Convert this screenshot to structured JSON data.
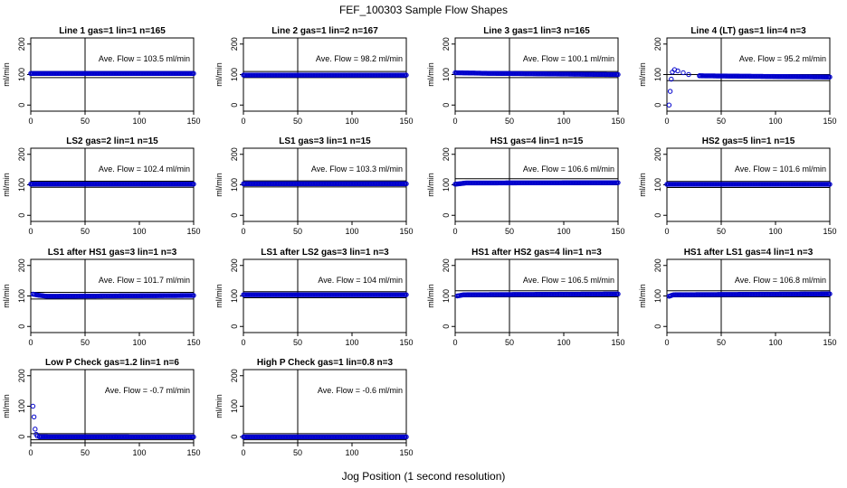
{
  "figure": {
    "title": "FEF_100303  Sample Flow Shapes",
    "xlabel": "Jog Position (1 second resolution)"
  },
  "colors": {
    "points": "#0000cc",
    "axes": "#000000",
    "background": "#ffffff"
  },
  "chart_data": [
    {
      "type": "scatter",
      "title": "Line 1 gas=1 lin=1 n=165",
      "ylabel": "ml/min",
      "annotation": "Ave. Flow =  103.5  ml/min",
      "xlim": [
        0,
        150
      ],
      "ylim": [
        -20,
        220
      ],
      "xticks": [
        0,
        50,
        100,
        150
      ],
      "yticks": [
        0,
        100,
        200
      ],
      "vline_x": 50,
      "hlines_y": [
        90,
        110
      ],
      "x": [
        0,
        150
      ],
      "y": [
        103.5,
        103.5
      ],
      "profile": "flat"
    },
    {
      "type": "scatter",
      "title": "Line 2 gas=1 lin=2 n=167",
      "ylabel": "ml/min",
      "annotation": "Ave. Flow =  98.2  ml/min",
      "xlim": [
        0,
        150
      ],
      "ylim": [
        -20,
        220
      ],
      "xticks": [
        0,
        50,
        100,
        150
      ],
      "yticks": [
        0,
        100,
        200
      ],
      "vline_x": 50,
      "hlines_y": [
        90,
        110
      ],
      "x": [
        0,
        150
      ],
      "y": [
        98.2,
        98.2
      ],
      "profile": "flat"
    },
    {
      "type": "scatter",
      "title": "Line 3 gas=1 lin=3 n=165",
      "ylabel": "ml/min",
      "annotation": "Ave. Flow =  100.1  ml/min",
      "xlim": [
        0,
        150
      ],
      "ylim": [
        -20,
        220
      ],
      "xticks": [
        0,
        50,
        100,
        150
      ],
      "yticks": [
        0,
        100,
        200
      ],
      "vline_x": 50,
      "hlines_y": [
        90,
        110
      ],
      "x": [
        0,
        30,
        150
      ],
      "y": [
        106,
        104,
        100
      ],
      "profile": "flat"
    },
    {
      "type": "scatter",
      "title": "Line 4 (LT) gas=1 lin=4 n=3",
      "ylabel": "ml/min",
      "annotation": "Ave. Flow =  95.2  ml/min",
      "xlim": [
        0,
        150
      ],
      "ylim": [
        -20,
        220
      ],
      "xticks": [
        0,
        50,
        100,
        150
      ],
      "yticks": [
        0,
        100,
        200
      ],
      "vline_x": 50,
      "hlines_y": [
        80,
        100
      ],
      "x": [
        2,
        3,
        4,
        5,
        7,
        10,
        15,
        20,
        30,
        150
      ],
      "y": [
        0,
        45,
        85,
        108,
        116,
        112,
        106,
        100,
        96,
        92
      ],
      "profile": "startup"
    },
    {
      "type": "scatter",
      "title": "LS2 gas=2 lin=1 n=15",
      "ylabel": "ml/min",
      "annotation": "Ave. Flow =  102.4  ml/min",
      "xlim": [
        0,
        150
      ],
      "ylim": [
        -20,
        220
      ],
      "xticks": [
        0,
        50,
        100,
        150
      ],
      "yticks": [
        0,
        100,
        200
      ],
      "vline_x": 50,
      "hlines_y": [
        92,
        112
      ],
      "x": [
        0,
        150
      ],
      "y": [
        102.4,
        102.4
      ],
      "profile": "flat"
    },
    {
      "type": "scatter",
      "title": "LS1 gas=3 lin=1 n=15",
      "ylabel": "ml/min",
      "annotation": "Ave. Flow =  103.3  ml/min",
      "xlim": [
        0,
        150
      ],
      "ylim": [
        -20,
        220
      ],
      "xticks": [
        0,
        50,
        100,
        150
      ],
      "yticks": [
        0,
        100,
        200
      ],
      "vline_x": 50,
      "hlines_y": [
        93,
        113
      ],
      "x": [
        0,
        150
      ],
      "y": [
        103.3,
        103.3
      ],
      "profile": "flat"
    },
    {
      "type": "scatter",
      "title": "HS1 gas=4 lin=1 n=15",
      "ylabel": "ml/min",
      "annotation": "Ave. Flow =  106.6  ml/min",
      "xlim": [
        0,
        150
      ],
      "ylim": [
        -20,
        220
      ],
      "xticks": [
        0,
        50,
        100,
        150
      ],
      "yticks": [
        0,
        100,
        200
      ],
      "vline_x": 50,
      "hlines_y": [
        100,
        120
      ],
      "x": [
        0,
        10,
        150
      ],
      "y": [
        102,
        106,
        107
      ],
      "profile": "flat"
    },
    {
      "type": "scatter",
      "title": "HS2 gas=5 lin=1 n=15",
      "ylabel": "ml/min",
      "annotation": "Ave. Flow =  101.6  ml/min",
      "xlim": [
        0,
        150
      ],
      "ylim": [
        -20,
        220
      ],
      "xticks": [
        0,
        50,
        100,
        150
      ],
      "yticks": [
        0,
        100,
        200
      ],
      "vline_x": 50,
      "hlines_y": [
        91,
        111
      ],
      "x": [
        0,
        150
      ],
      "y": [
        101.6,
        101.6
      ],
      "profile": "flat"
    },
    {
      "type": "scatter",
      "title": "LS1 after HS1 gas=3 lin=1 n=3",
      "ylabel": "ml/min",
      "annotation": "Ave. Flow =  101.7  ml/min",
      "xlim": [
        0,
        150
      ],
      "ylim": [
        -20,
        220
      ],
      "xticks": [
        0,
        50,
        100,
        150
      ],
      "yticks": [
        0,
        100,
        200
      ],
      "vline_x": 50,
      "hlines_y": [
        90,
        112
      ],
      "x": [
        2,
        6,
        15,
        150
      ],
      "y": [
        106,
        103,
        99,
        101.7
      ],
      "profile": "flat"
    },
    {
      "type": "scatter",
      "title": "LS1 after LS2 gas=3 lin=1 n=3",
      "ylabel": "ml/min",
      "annotation": "Ave. Flow =  104  ml/min",
      "xlim": [
        0,
        150
      ],
      "ylim": [
        -20,
        220
      ],
      "xticks": [
        0,
        50,
        100,
        150
      ],
      "yticks": [
        0,
        100,
        200
      ],
      "vline_x": 50,
      "hlines_y": [
        94,
        114
      ],
      "x": [
        0,
        150
      ],
      "y": [
        104,
        104
      ],
      "profile": "flat"
    },
    {
      "type": "scatter",
      "title": "HS1 after HS2 gas=4 lin=1 n=3",
      "ylabel": "ml/min",
      "annotation": "Ave. Flow =  106.5  ml/min",
      "xlim": [
        0,
        150
      ],
      "ylim": [
        -20,
        220
      ],
      "xticks": [
        0,
        50,
        100,
        150
      ],
      "yticks": [
        0,
        100,
        200
      ],
      "vline_x": 50,
      "hlines_y": [
        97,
        117
      ],
      "x": [
        2,
        8,
        150
      ],
      "y": [
        100,
        104,
        106.5
      ],
      "profile": "flat"
    },
    {
      "type": "scatter",
      "title": "HS1 after LS1 gas=4 lin=1 n=3",
      "ylabel": "ml/min",
      "annotation": "Ave. Flow =  106.8  ml/min",
      "xlim": [
        0,
        150
      ],
      "ylim": [
        -20,
        220
      ],
      "xticks": [
        0,
        50,
        100,
        150
      ],
      "yticks": [
        0,
        100,
        200
      ],
      "vline_x": 50,
      "hlines_y": [
        97,
        117
      ],
      "x": [
        2,
        6,
        150
      ],
      "y": [
        99,
        104,
        106.8
      ],
      "profile": "flat"
    },
    {
      "type": "scatter",
      "title": "Low P Check gas=1.2 lin=1 n=6",
      "ylabel": "ml/min",
      "annotation": "Ave. Flow =  -0.7  ml/min",
      "xlim": [
        0,
        150
      ],
      "ylim": [
        -20,
        220
      ],
      "xticks": [
        0,
        50,
        100,
        150
      ],
      "yticks": [
        0,
        100,
        200
      ],
      "vline_x": 50,
      "hlines_y": [
        -10,
        10
      ],
      "x": [
        2,
        3,
        4,
        5,
        6,
        8,
        150
      ],
      "y": [
        100,
        65,
        25,
        8,
        2,
        0,
        -0.7
      ],
      "profile": "decay"
    },
    {
      "type": "scatter",
      "title": "High P Check gas=1 lin=0.8 n=3",
      "ylabel": "ml/min",
      "annotation": "Ave. Flow =  -0.6  ml/min",
      "xlim": [
        0,
        150
      ],
      "ylim": [
        -20,
        220
      ],
      "xticks": [
        0,
        50,
        100,
        150
      ],
      "yticks": [
        0,
        100,
        200
      ],
      "vline_x": 50,
      "hlines_y": [
        -10,
        10
      ],
      "x": [
        0,
        150
      ],
      "y": [
        -0.6,
        -0.6
      ],
      "profile": "flat"
    }
  ]
}
